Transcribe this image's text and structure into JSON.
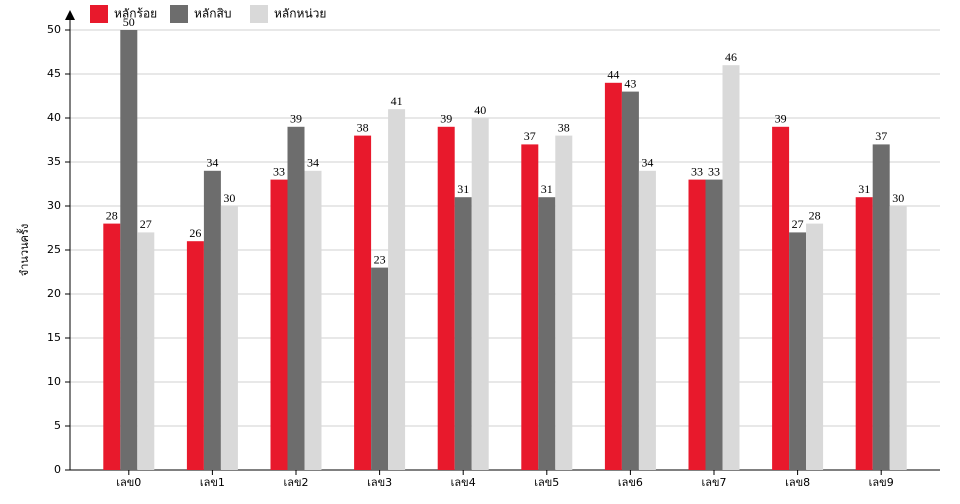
{
  "chart_data": {
    "type": "bar",
    "y_label": "จำนวนครั้ง",
    "categories": [
      "เลข0",
      "เลข1",
      "เลข2",
      "เลข3",
      "เลข4",
      "เลข5",
      "เลข6",
      "เลข7",
      "เลข8",
      "เลข9"
    ],
    "series": [
      {
        "name": "หลักร้อย",
        "color": "#e8192c",
        "values": [
          28,
          26,
          33,
          38,
          39,
          37,
          44,
          33,
          39,
          31
        ]
      },
      {
        "name": "หลักสิบ",
        "color": "#6d6d6d",
        "values": [
          50,
          34,
          39,
          23,
          31,
          31,
          43,
          33,
          27,
          37
        ]
      },
      {
        "name": "หลักหน่วย",
        "color": "#d9d9d9",
        "values": [
          27,
          30,
          34,
          41,
          40,
          38,
          34,
          46,
          28,
          30
        ]
      }
    ],
    "ylim": [
      0,
      50
    ],
    "yticks": [
      0,
      5,
      10,
      15,
      20,
      25,
      30,
      35,
      40,
      45,
      50
    ],
    "grid": true
  }
}
